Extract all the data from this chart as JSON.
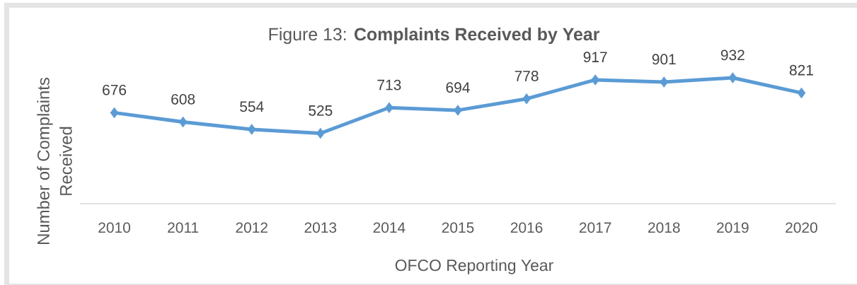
{
  "chart_data": {
    "type": "line",
    "title": "Figure 13: **Complaints Received by Year**",
    "xlabel": "OFCO Reporting Year",
    "ylabel": "Number of Complaints Received",
    "categories": [
      "2010",
      "2011",
      "2012",
      "2013",
      "2014",
      "2015",
      "2016",
      "2017",
      "2018",
      "2019",
      "2020"
    ],
    "series": [
      {
        "color": "#5b9bd5",
        "values": [
          676,
          608,
          554,
          525,
          713,
          694,
          778,
          917,
          901,
          932,
          821
        ]
      }
    ],
    "tick_labels": "x",
    "marker": "diamond",
    "line_style": "solid",
    "data_labels": true
  }
}
